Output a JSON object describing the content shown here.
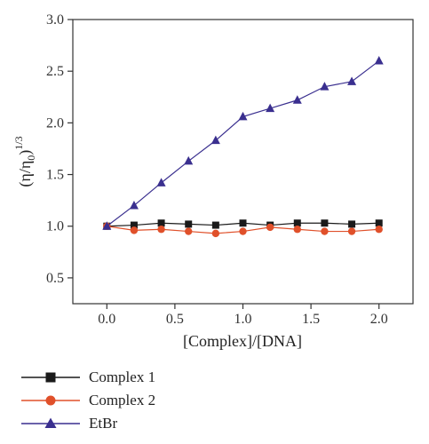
{
  "chart_data": {
    "type": "line",
    "xlabel": "[Complex]/[DNA]",
    "ylabel_main": "(η/η",
    "ylabel_sub": "0",
    "ylabel_close": ")",
    "ylabel_sup": "1/3",
    "xlim": [
      -0.25,
      2.25
    ],
    "ylim": [
      0.25,
      3.0
    ],
    "xticks": [
      0.0,
      0.5,
      1.0,
      1.5,
      2.0
    ],
    "xtick_labels": [
      "0.0",
      "0.5",
      "1.0",
      "1.5",
      "2.0"
    ],
    "yticks": [
      0.5,
      1.0,
      1.5,
      2.0,
      2.5,
      3.0
    ],
    "ytick_labels": [
      "0.5",
      "1.0",
      "1.5",
      "2.0",
      "2.5",
      "3.0"
    ],
    "x": [
      0.0,
      0.2,
      0.4,
      0.6,
      0.8,
      1.0,
      1.2,
      1.4,
      1.6,
      1.8,
      2.0
    ],
    "series": [
      {
        "name": "Complex 1",
        "color": "#1a1a1a",
        "marker": "square",
        "values": [
          1.0,
          1.01,
          1.03,
          1.02,
          1.01,
          1.03,
          1.01,
          1.03,
          1.03,
          1.02,
          1.03
        ]
      },
      {
        "name": "Complex 2",
        "color": "#e0502a",
        "marker": "circle",
        "values": [
          1.0,
          0.96,
          0.97,
          0.95,
          0.93,
          0.95,
          0.99,
          0.97,
          0.95,
          0.95,
          0.97
        ]
      },
      {
        "name": "EtBr",
        "color": "#3a2f8f",
        "marker": "triangle",
        "values": [
          1.0,
          1.2,
          1.42,
          1.63,
          1.83,
          2.06,
          2.14,
          2.22,
          2.35,
          2.4,
          2.6
        ]
      }
    ],
    "legend_position": "bottom-left",
    "grid": false
  }
}
